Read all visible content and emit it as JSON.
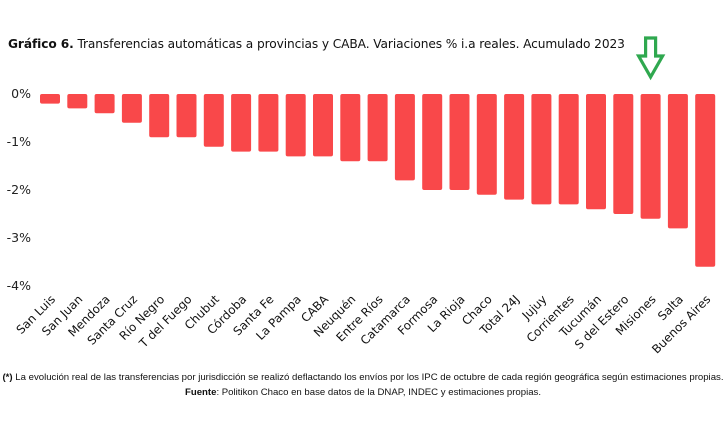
{
  "title": {
    "label": "Gráfico 6.",
    "text": " Transferencias automáticas a provincias y CABA. Variaciones % i.a reales. Acumulado 2023"
  },
  "chart_data": {
    "type": "bar",
    "title": "Gráfico 6. Transferencias automáticas a provincias y CABA. Variaciones % i.a reales. Acumulado 2023",
    "xlabel": "",
    "ylabel": "",
    "ylim": [
      -4,
      0
    ],
    "yticks": [
      0,
      -1,
      -2,
      -3,
      -4
    ],
    "ytick_labels": [
      "0%",
      "-1%",
      "-2%",
      "-3%",
      "-4%"
    ],
    "grid": false,
    "legend": "none",
    "bar_color": "#f9484a",
    "categories": [
      "San Luis",
      "San Juan",
      "Mendoza",
      "Santa Cruz",
      "Río Negro",
      "T del Fuego",
      "Chubut",
      "Córdoba",
      "Santa Fe",
      "La Pampa",
      "CABA",
      "Neuquén",
      "Entre Ríos",
      "Catamarca",
      "Formosa",
      "La Rioja",
      "Chaco",
      "Total 24J",
      "Jujuy",
      "Corrientes",
      "Tucumán",
      "S del Estero",
      "Misiones",
      "Salta",
      "Buenos Aires"
    ],
    "values": [
      -0.2,
      -0.3,
      -0.4,
      -0.6,
      -0.9,
      -0.9,
      -1.1,
      -1.2,
      -1.2,
      -1.3,
      -1.3,
      -1.4,
      -1.4,
      -1.8,
      -2.0,
      -2.0,
      -2.1,
      -2.2,
      -2.3,
      -2.3,
      -2.4,
      -2.5,
      -2.6,
      -2.8,
      -3.6
    ],
    "annotations": [
      {
        "type": "arrow-down",
        "target": "Misiones",
        "color": "#2fa84f"
      }
    ]
  },
  "footnote": {
    "marker": "(*)",
    "text1": " La evolución real de las transferencias por jurisdicción se realizó deflactando los envíos por los IPC de octubre de cada región geográfica según estimaciones propias. ",
    "source_label": "Fuente",
    "text2": ": Politikon Chaco en base datos de la DNAP, INDEC y estimaciones propias."
  }
}
